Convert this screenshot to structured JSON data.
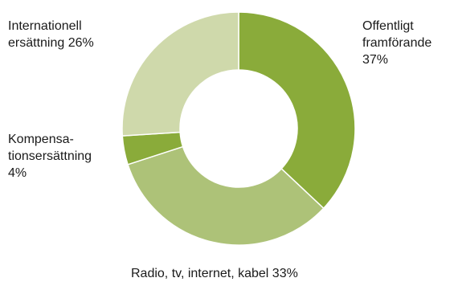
{
  "chart_data": {
    "type": "pie",
    "donut": true,
    "start": "12 o'clock",
    "direction": "clockwise",
    "categories": [
      "Offentligt framförande",
      "Radio, tv, internet, kabel",
      "Kompensationsersättning",
      "Internationell ersättning"
    ],
    "values": [
      37,
      33,
      4,
      26
    ],
    "colors": [
      "#8aab3a",
      "#adc278",
      "#8aab3a",
      "#cfd9ab"
    ],
    "labels": [
      [
        "Offentligt",
        "framförande",
        "37%"
      ],
      [
        "Radio, tv, internet, kabel 33%"
      ],
      [
        "Kompensa-",
        "tionsersättning",
        "4%"
      ],
      [
        "Internationell",
        "ersättning 26%"
      ]
    ],
    "legend": "none"
  }
}
